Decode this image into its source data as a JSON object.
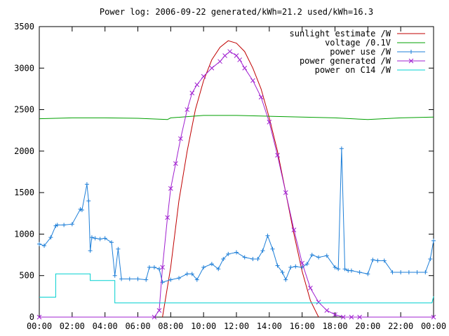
{
  "chart_data": {
    "type": "line",
    "title": "Power log: 2006-09-22 generated/kWh=21.2 used/kWh=16.3",
    "xlabel": "",
    "ylabel": "",
    "xlim": [
      0,
      24
    ],
    "ylim": [
      0,
      3500
    ],
    "x_ticks": [
      "00:00",
      "02:00",
      "04:00",
      "06:00",
      "08:00",
      "10:00",
      "12:00",
      "14:00",
      "16:00",
      "18:00",
      "20:00",
      "22:00",
      "00:00"
    ],
    "y_ticks": [
      "0",
      "500",
      "1000",
      "1500",
      "2000",
      "2500",
      "3000",
      "3500"
    ],
    "legend_position": "top-right",
    "grid": false,
    "series": [
      {
        "name": "sunlight estimate /W",
        "color": "#c00000",
        "marker": "none",
        "x": [
          7.5,
          8,
          8.5,
          9,
          9.5,
          10,
          10.5,
          11,
          11.5,
          12,
          12.5,
          13,
          13.5,
          14,
          14.5,
          15,
          15.5,
          16,
          16.5,
          17
        ],
        "y": [
          0,
          600,
          1400,
          2000,
          2500,
          2850,
          3100,
          3250,
          3330,
          3300,
          3200,
          3000,
          2750,
          2400,
          2000,
          1500,
          1000,
          550,
          200,
          0
        ]
      },
      {
        "name": "voltage /0.1V",
        "color": "#00a000",
        "marker": "none",
        "x": [
          0,
          2,
          4,
          6,
          7.8,
          8,
          10,
          12,
          14,
          16,
          18,
          20,
          22,
          24
        ],
        "y": [
          2390,
          2400,
          2400,
          2395,
          2380,
          2400,
          2430,
          2430,
          2420,
          2410,
          2400,
          2380,
          2400,
          2410
        ]
      },
      {
        "name": "power use /W",
        "color": "#1e7fd8",
        "marker": "+",
        "x": [
          0,
          0.3,
          0.7,
          1.0,
          1.1,
          1.5,
          2.0,
          2.5,
          2.6,
          2.9,
          3.0,
          3.1,
          3.2,
          3.4,
          3.7,
          4.0,
          4.4,
          4.6,
          4.8,
          5.0,
          5.5,
          6.0,
          6.5,
          6.7,
          7.0,
          7.3,
          7.5,
          8.0,
          8.5,
          9.0,
          9.3,
          9.6,
          10.0,
          10.5,
          10.9,
          11.2,
          11.5,
          12.0,
          12.5,
          13.0,
          13.3,
          13.6,
          13.9,
          14.2,
          14.5,
          14.8,
          15.0,
          15.3,
          15.6,
          16.0,
          16.3,
          16.6,
          17.0,
          17.5,
          18.0,
          18.2,
          18.4,
          18.6,
          18.8,
          19.0,
          19.5,
          20.0,
          20.3,
          20.6,
          21.0,
          21.5,
          22.0,
          22.5,
          23.0,
          23.5,
          23.8,
          24.0
        ],
        "y": [
          880,
          860,
          960,
          1100,
          1110,
          1110,
          1120,
          1300,
          1290,
          1600,
          1400,
          800,
          960,
          950,
          940,
          950,
          900,
          500,
          820,
          460,
          460,
          460,
          450,
          600,
          600,
          580,
          420,
          450,
          470,
          520,
          520,
          450,
          600,
          640,
          580,
          700,
          760,
          780,
          720,
          700,
          700,
          800,
          980,
          820,
          620,
          540,
          450,
          600,
          610,
          600,
          640,
          750,
          720,
          740,
          600,
          580,
          2030,
          580,
          560,
          560,
          540,
          520,
          690,
          680,
          680,
          540,
          540,
          540,
          540,
          540,
          700,
          920
        ]
      },
      {
        "name": "power generated /W",
        "color": "#a020d0",
        "marker": "x",
        "x": [
          0,
          7.0,
          7.3,
          7.5,
          7.8,
          8.0,
          8.3,
          8.6,
          9.0,
          9.3,
          9.6,
          10.0,
          10.5,
          11.0,
          11.3,
          11.6,
          12.0,
          12.2,
          12.5,
          13.0,
          13.5,
          14.0,
          14.5,
          15.0,
          15.5,
          16.0,
          16.5,
          17.0,
          17.5,
          18.0,
          18.5,
          19.0,
          19.5,
          24.0
        ],
        "y": [
          0,
          0,
          80,
          600,
          1200,
          1550,
          1850,
          2150,
          2500,
          2700,
          2800,
          2900,
          3000,
          3080,
          3150,
          3200,
          3150,
          3100,
          3000,
          2850,
          2650,
          2350,
          1950,
          1500,
          1050,
          650,
          350,
          180,
          80,
          30,
          0,
          0,
          0,
          0
        ]
      },
      {
        "name": "power on C14 /W",
        "color": "#00d0d0",
        "marker": "none",
        "x": [
          0,
          1.0,
          1.0,
          3.1,
          3.1,
          4.6,
          4.6,
          23.9,
          24.0
        ],
        "y": [
          240,
          240,
          520,
          520,
          440,
          440,
          170,
          170,
          250
        ]
      }
    ]
  }
}
